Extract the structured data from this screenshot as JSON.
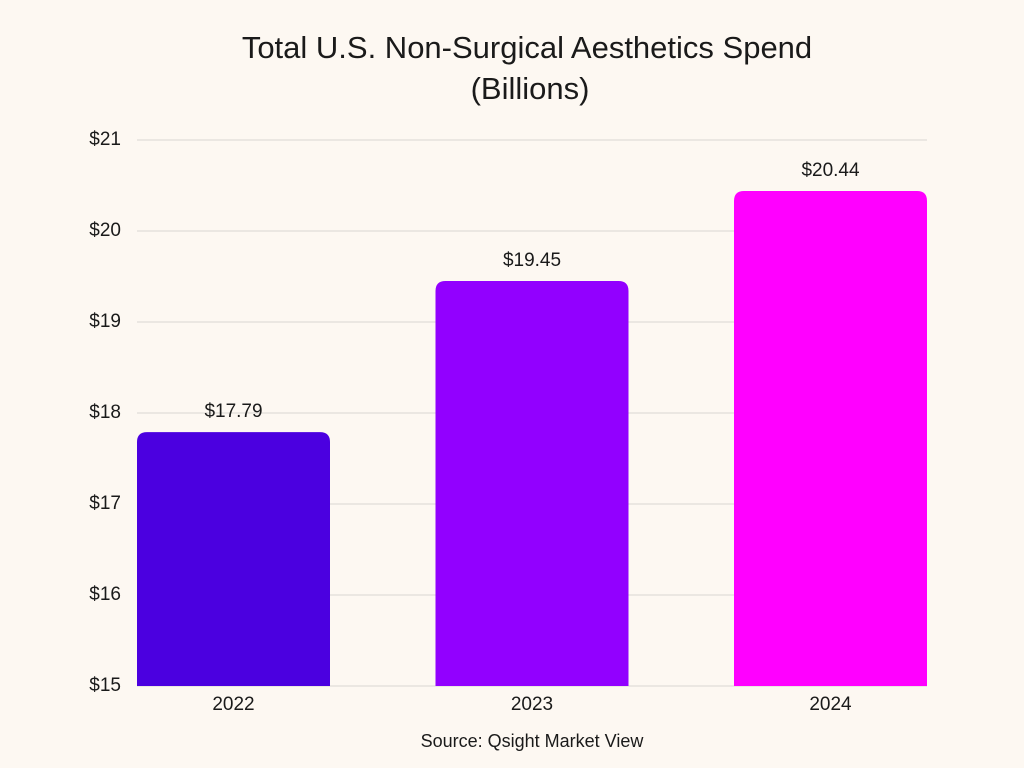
{
  "chart_data": {
    "type": "bar",
    "title": [
      "Total U.S. Non-Surgical Aesthetics Spend",
      "(Billions)"
    ],
    "categories": [
      "2022",
      "2023",
      "2024"
    ],
    "values": [
      17.79,
      19.45,
      20.44
    ],
    "value_labels": [
      "$17.79",
      "$19.45",
      "$20.44"
    ],
    "colors": [
      "#4b00e0",
      "#9200ff",
      "#ff00ff"
    ],
    "ylim": [
      15,
      21
    ],
    "yticks": [
      {
        "value": 15,
        "label": "$15"
      },
      {
        "value": 16,
        "label": "$16"
      },
      {
        "value": 17,
        "label": "$17"
      },
      {
        "value": 18,
        "label": "$18"
      },
      {
        "value": 19,
        "label": "$19"
      },
      {
        "value": 20,
        "label": "$20"
      },
      {
        "value": 21,
        "label": "$21"
      }
    ],
    "grid": true,
    "source": "Source: Qsight Market View"
  }
}
